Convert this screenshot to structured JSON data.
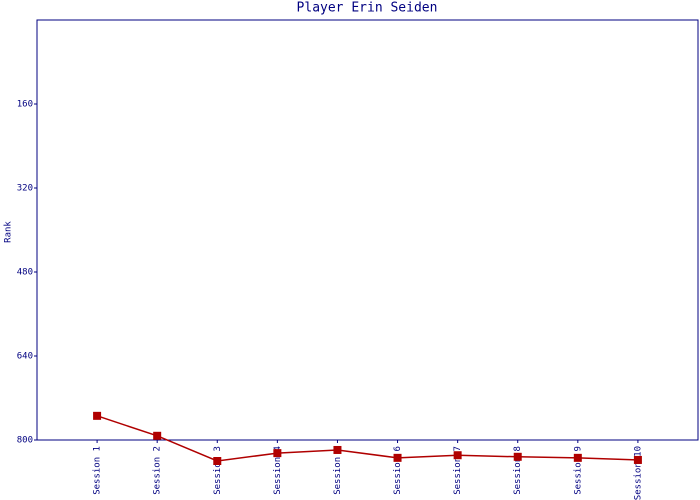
{
  "chart_data": {
    "type": "line",
    "title": "Player Erin Seiden",
    "y_label": "Rank",
    "categories": [
      "Session 1",
      "Session 2",
      "Session 3",
      "Session 4",
      "Session 5",
      "Session 6",
      "Session 7",
      "Session 8",
      "Session 9",
      "Session 10"
    ],
    "series": [
      {
        "name": "Rank",
        "color": "#b00000",
        "values": [
          754,
          792,
          840,
          825,
          819,
          834,
          829,
          832,
          834,
          838
        ]
      }
    ],
    "ylim": [
      800,
      0
    ],
    "yticks": [
      160,
      320,
      480,
      640,
      800
    ],
    "inverted_y": true
  }
}
